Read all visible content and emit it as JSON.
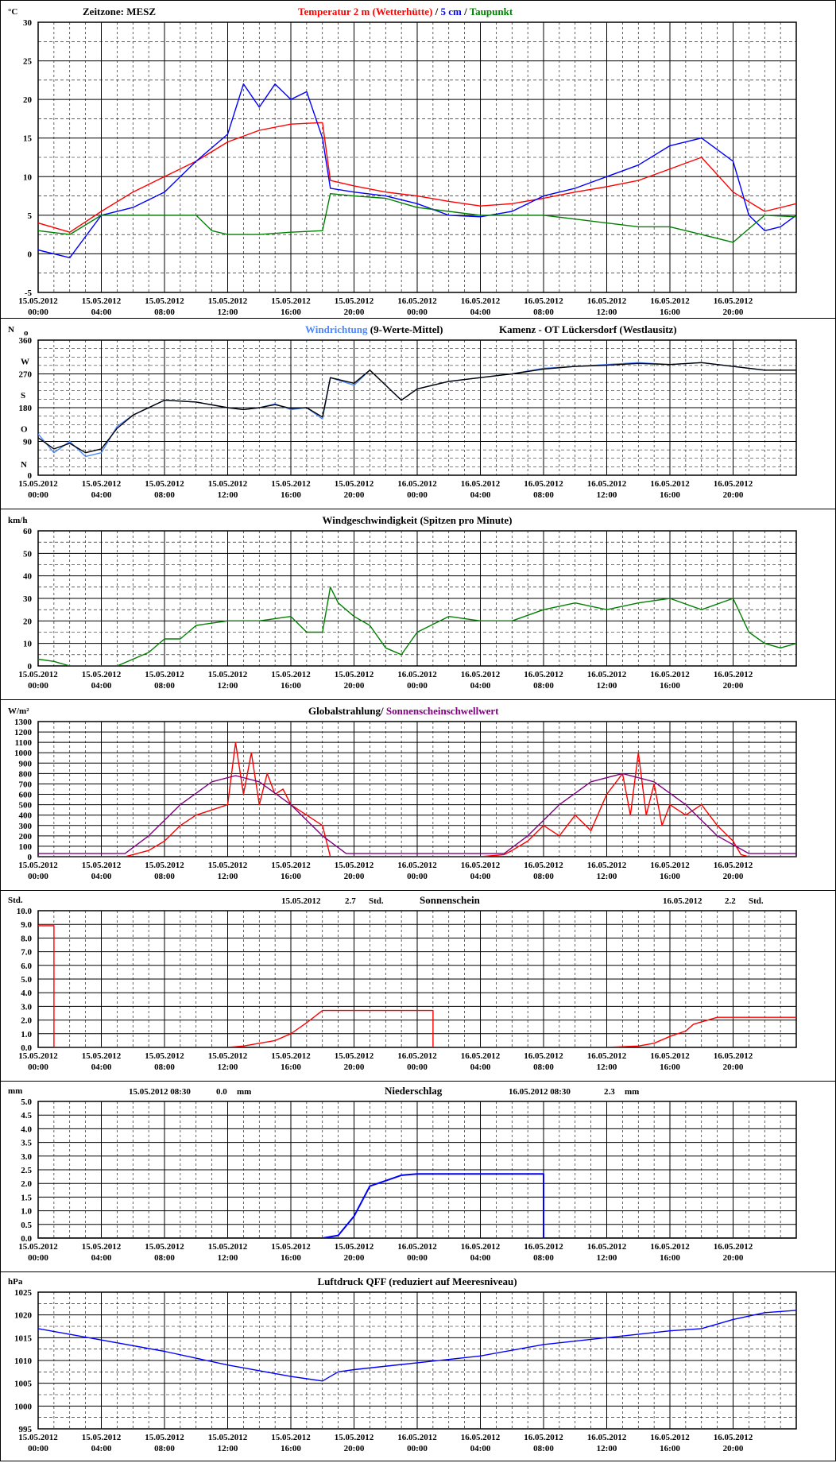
{
  "x_axis": {
    "dates": [
      "15.05.2012",
      "15.05.2012",
      "15.05.2012",
      "15.05.2012",
      "15.05.2012",
      "15.05.2012",
      "16.05.2012",
      "16.05.2012",
      "16.05.2012",
      "16.05.2012",
      "16.05.2012",
      "16.05.2012"
    ],
    "times": [
      "00:00",
      "04:00",
      "08:00",
      "12:00",
      "16:00",
      "20:00",
      "00:00",
      "04:00",
      "08:00",
      "12:00",
      "16:00",
      "20:00"
    ],
    "range_hours": [
      0,
      48
    ]
  },
  "colors": {
    "red": "#ff0000",
    "blue": "#0000ff",
    "green": "#008000",
    "black": "#000000",
    "lightblue": "#4a86ff",
    "purple": "#800080",
    "frame": "#000000",
    "grid": "#000000"
  },
  "chart_data": [
    {
      "id": "temperature",
      "type": "line",
      "unit": "°C",
      "header": {
        "zone": "Zeitzone: MESZ",
        "part_red": "Temperatur 2 m (Wetterhütte)",
        "sep1": " / ",
        "part_blue": "5 cm",
        "sep2": " / ",
        "part_green": "Taupunkt"
      },
      "ylim": [
        -5,
        30
      ],
      "yticks": [
        "30",
        "25",
        "20",
        "15",
        "10",
        "5",
        "0",
        "-5"
      ],
      "series": [
        {
          "color": "red",
          "x": [
            0,
            2,
            4,
            6,
            8,
            10,
            12,
            14,
            16,
            18,
            18.5,
            20,
            22,
            24,
            26,
            28,
            30,
            32,
            34,
            36,
            38,
            40,
            42,
            44,
            46,
            48
          ],
          "y": [
            4,
            2.8,
            5.5,
            8,
            10,
            12,
            14.5,
            16,
            16.8,
            17,
            9.5,
            8.8,
            8,
            7.5,
            6.8,
            6.2,
            6.5,
            7.2,
            8,
            8.7,
            9.5,
            11,
            12.5,
            8,
            5.5,
            6.5
          ]
        },
        {
          "color": "blue",
          "x": [
            0,
            2,
            4,
            6,
            8,
            10,
            12,
            13,
            14,
            15,
            16,
            17,
            18,
            18.5,
            20,
            22,
            24,
            26,
            28,
            30,
            32,
            34,
            36,
            38,
            40,
            42,
            44,
            45,
            46,
            47,
            48
          ],
          "y": [
            0.5,
            -0.5,
            5,
            6,
            8,
            12,
            15.5,
            22,
            19,
            22,
            20,
            21,
            15,
            8.5,
            8,
            7.5,
            6.5,
            5,
            4.8,
            5.5,
            7.5,
            8.5,
            10,
            11.5,
            14,
            15,
            12,
            5,
            3,
            3.5,
            5
          ]
        },
        {
          "color": "green",
          "x": [
            0,
            2,
            4,
            6,
            8,
            10,
            11,
            12,
            14,
            16,
            18,
            18.5,
            20,
            22,
            24,
            26,
            28,
            30,
            32,
            34,
            36,
            38,
            40,
            42,
            44,
            46,
            48
          ],
          "y": [
            3,
            2.5,
            5,
            5,
            5,
            5,
            3,
            2.5,
            2.5,
            2.8,
            3,
            7.8,
            7.5,
            7.2,
            6,
            5.5,
            5,
            5,
            5,
            4.5,
            4,
            3.5,
            3.5,
            2.5,
            1.5,
            5,
            4.8
          ]
        }
      ]
    },
    {
      "id": "winddir",
      "type": "line",
      "unit": "N",
      "unit_glyph": "o",
      "header": {
        "part_blue": "Windrichtung",
        "part_black": " (9-Werte-Mittel)",
        "station": "Kamenz - OT Lückersdorf (Westlausitz)"
      },
      "ylim": [
        0,
        360
      ],
      "yticks": [
        "360",
        "270",
        "180",
        "90",
        "0"
      ],
      "compass": [
        "N",
        "O",
        "S",
        "W"
      ],
      "series": [
        {
          "color": "lightblue",
          "x": [
            0,
            1,
            2,
            3,
            4,
            5,
            6,
            8,
            10,
            12,
            13,
            14,
            15,
            16,
            17,
            18,
            18.5,
            20,
            21,
            22,
            23,
            24,
            26,
            28,
            30,
            32,
            34,
            36,
            38,
            40,
            42,
            44,
            46,
            48
          ],
          "y": [
            110,
            60,
            90,
            50,
            60,
            130,
            160,
            200,
            195,
            180,
            175,
            180,
            190,
            175,
            180,
            150,
            260,
            240,
            280,
            240,
            200,
            230,
            250,
            260,
            270,
            285,
            290,
            295,
            300,
            295,
            300,
            290,
            280,
            280
          ]
        },
        {
          "color": "black",
          "x": [
            0,
            1,
            2,
            3,
            4,
            5,
            6,
            8,
            10,
            12,
            13,
            14,
            15,
            16,
            17,
            18,
            18.5,
            20,
            21,
            22,
            23,
            24,
            26,
            28,
            30,
            32,
            34,
            36,
            38,
            40,
            42,
            44,
            46,
            48
          ],
          "y": [
            100,
            70,
            85,
            60,
            70,
            125,
            160,
            200,
            195,
            180,
            175,
            180,
            188,
            178,
            180,
            155,
            260,
            245,
            280,
            240,
            200,
            230,
            250,
            260,
            270,
            283,
            290,
            293,
            298,
            295,
            300,
            290,
            280,
            280
          ]
        }
      ]
    },
    {
      "id": "windspeed",
      "type": "line",
      "unit": "km/h",
      "header": {
        "title": "Windgeschwindigkeit (Spitzen pro Minute)"
      },
      "ylim": [
        0,
        60
      ],
      "yticks": [
        "60",
        "50",
        "40",
        "30",
        "20",
        "10",
        "0"
      ],
      "series": [
        {
          "color": "green",
          "x": [
            0,
            1,
            2,
            3,
            4,
            5,
            6,
            7,
            8,
            9,
            10,
            12,
            14,
            16,
            17,
            18,
            18.5,
            19,
            20,
            21,
            22,
            23,
            24,
            26,
            28,
            30,
            32,
            34,
            36,
            38,
            40,
            42,
            44,
            45,
            46,
            47,
            48
          ],
          "y": [
            3,
            2,
            0,
            0,
            0,
            0,
            3,
            6,
            12,
            12,
            18,
            20,
            20,
            22,
            15,
            15,
            35,
            28,
            22,
            18,
            8,
            5,
            15,
            22,
            20,
            20,
            25,
            28,
            25,
            28,
            30,
            25,
            30,
            15,
            10,
            8,
            10
          ]
        }
      ]
    },
    {
      "id": "radiation",
      "type": "line",
      "unit": "W/m²",
      "header": {
        "part_black": "Globalstrahlung/",
        "part_purple": " Sonnenscheinschwellwert"
      },
      "ylim": [
        0,
        1300
      ],
      "yticks": [
        "1300",
        "1200",
        "1100",
        "1000",
        "900",
        "800",
        "700",
        "600",
        "500",
        "400",
        "300",
        "200",
        "100",
        "0"
      ],
      "series": [
        {
          "color": "red",
          "x": [
            0,
            5.5,
            6,
            7,
            8,
            9,
            10,
            11,
            12,
            12.5,
            13,
            13.5,
            14,
            14.5,
            15,
            15.5,
            16,
            16.5,
            17,
            18,
            18.5,
            19,
            24,
            28,
            29.5,
            30,
            31,
            32,
            33,
            34,
            35,
            36,
            37,
            37.5,
            38,
            38.5,
            39,
            39.5,
            40,
            41,
            42,
            43,
            44,
            44.5,
            45,
            48
          ],
          "y": [
            0,
            0,
            20,
            60,
            150,
            300,
            400,
            450,
            500,
            1100,
            600,
            1000,
            500,
            800,
            600,
            650,
            500,
            450,
            400,
            300,
            0,
            0,
            0,
            0,
            20,
            60,
            150,
            300,
            200,
            400,
            250,
            600,
            800,
            400,
            1000,
            400,
            700,
            300,
            500,
            400,
            500,
            300,
            150,
            20,
            0,
            0
          ]
        },
        {
          "color": "purple",
          "x": [
            0,
            5.5,
            7,
            9,
            11,
            12.5,
            14,
            16,
            18,
            19.5,
            24,
            29.5,
            31,
            33,
            35,
            37,
            39,
            41,
            43,
            45,
            48
          ],
          "y": [
            30,
            30,
            200,
            500,
            720,
            780,
            720,
            500,
            200,
            30,
            30,
            30,
            200,
            500,
            720,
            800,
            720,
            500,
            200,
            30,
            30
          ]
        }
      ]
    },
    {
      "id": "sunshine",
      "type": "line",
      "unit": "Std.",
      "header": {
        "title": "Sonnenschein",
        "d1": "15.05.2012",
        "v1": "2.7",
        "u1": "Std.",
        "d2": "16.05.2012",
        "v2": "2.2",
        "u2": "Std."
      },
      "ylim": [
        0,
        10
      ],
      "yticks": [
        "10.0",
        "9.0",
        "8.0",
        "7.0",
        "6.0",
        "5.0",
        "4.0",
        "3.0",
        "2.0",
        "1.0",
        "0.0"
      ],
      "series": [
        {
          "color": "red",
          "x": [
            0,
            1,
            1,
            12,
            13,
            14,
            15,
            16,
            17,
            18,
            25,
            25,
            31,
            34,
            36,
            38,
            39,
            40,
            41,
            41.5,
            43,
            48
          ],
          "y": [
            8.9,
            8.9,
            0,
            0,
            0.1,
            0.3,
            0.5,
            1.0,
            1.8,
            2.7,
            2.7,
            0,
            0,
            0,
            0,
            0.1,
            0.3,
            0.8,
            1.2,
            1.7,
            2.2,
            2.2
          ]
        }
      ]
    },
    {
      "id": "precipitation",
      "type": "line",
      "unit": "mm",
      "header": {
        "title": "Niederschlag",
        "d1": "15.05.2012 08:30",
        "v1": "0.0",
        "u1": "mm",
        "d2": "16.05.2012 08:30",
        "v2": "2.3",
        "u2": "mm"
      },
      "ylim": [
        0,
        5
      ],
      "yticks": [
        "5.0",
        "4.5",
        "4.0",
        "3.5",
        "3.0",
        "2.5",
        "2.0",
        "1.5",
        "1.0",
        "0.5",
        "0.0"
      ],
      "series": [
        {
          "color": "blue",
          "x": [
            0,
            18,
            19,
            20,
            21,
            22,
            23,
            24,
            32,
            32,
            48
          ],
          "y": [
            0,
            0,
            0.1,
            0.8,
            1.9,
            2.1,
            2.3,
            2.35,
            2.35,
            0,
            0
          ]
        }
      ]
    },
    {
      "id": "pressure",
      "type": "line",
      "unit": "hPa",
      "header": {
        "title": "Luftdruck QFF (reduziert auf Meeresniveau)"
      },
      "ylim": [
        995,
        1025
      ],
      "yticks": [
        "1025",
        "1020",
        "1015",
        "1010",
        "1005",
        "1000",
        "995"
      ],
      "series": [
        {
          "color": "blue",
          "x": [
            0,
            4,
            8,
            12,
            16,
            18,
            19,
            20,
            24,
            28,
            32,
            36,
            40,
            42,
            44,
            46,
            48
          ],
          "y": [
            1017,
            1014.5,
            1012,
            1009,
            1006.5,
            1005.5,
            1007.5,
            1008,
            1009.5,
            1011,
            1013.5,
            1015,
            1016.5,
            1017,
            1019,
            1020.5,
            1021
          ]
        }
      ]
    }
  ]
}
